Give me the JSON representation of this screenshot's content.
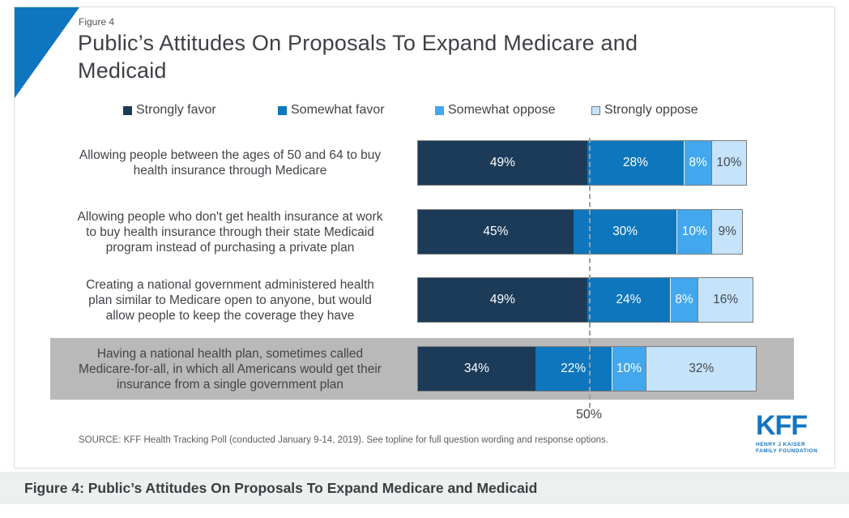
{
  "figure_label": "Figure 4",
  "title": "Public’s Attitudes On Proposals To Expand Medicare and Medicaid",
  "title_lines": [
    "Public’s Attitudes On Proposals To Expand Medicare and",
    "Medicaid"
  ],
  "legend": [
    {
      "label": "Strongly favor",
      "color": "#1b3b58",
      "bordered": false
    },
    {
      "label": "Somewhat favor",
      "color": "#0e76bc",
      "bordered": false
    },
    {
      "label": "Somewhat oppose",
      "color": "#42a7ec",
      "bordered": false
    },
    {
      "label": "Strongly oppose",
      "color": "#c5e3fb",
      "bordered": true
    }
  ],
  "chart_data": {
    "type": "bar",
    "orientation": "horizontal",
    "stacked": true,
    "unit": "%",
    "xlim": [
      0,
      100
    ],
    "categories": [
      "Allowing people between the ages of 50 and 64 to buy health insurance through Medicare",
      "Allowing people who don't get health insurance at work to buy health insurance through their state Medicaid program instead of purchasing a private plan",
      "Creating a national government administered health plan similar to Medicare open to anyone, but would allow people to keep the coverage they have",
      "Having a national health plan, sometimes called Medicare-for-all, in which all Americans would get their insurance from a single government plan"
    ],
    "categories_lines": [
      [
        "Allowing people between the ages of 50 and 64 to buy",
        "health insurance through Medicare"
      ],
      [
        "Allowing people who don't get health insurance at work",
        "to buy health insurance through their state Medicaid",
        "program instead of purchasing a private plan"
      ],
      [
        "Creating a national government administered health",
        "plan similar to Medicare open to anyone, but would",
        "allow people to keep the coverage they have"
      ],
      [
        "Having a national health plan, sometimes called",
        "Medicare-for-all, in which all Americans would get their",
        "insurance from a single government plan"
      ]
    ],
    "series": [
      {
        "name": "Strongly favor",
        "color": "#1b3b58",
        "text_color": "white",
        "values": [
          49,
          45,
          49,
          34
        ]
      },
      {
        "name": "Somewhat favor",
        "color": "#0e76bc",
        "text_color": "white",
        "values": [
          28,
          30,
          24,
          22
        ]
      },
      {
        "name": "Somewhat oppose",
        "color": "#42a7ec",
        "text_color": "white",
        "values": [
          8,
          10,
          8,
          10
        ]
      },
      {
        "name": "Strongly oppose",
        "color": "#c5e3fb",
        "text_color": "dark",
        "values": [
          10,
          9,
          16,
          32
        ]
      }
    ],
    "highlighted_category_index": 3,
    "highlight_color": "#b9b9b9",
    "reference_line": {
      "value": 50,
      "label": "50%"
    },
    "legend_position": "top",
    "grid": false
  },
  "source": "SOURCE: KFF Health Tracking Poll (conducted January 9-14, 2019). See topline for full question wording and response options.",
  "logo": {
    "text": "KFF",
    "line1": "HENRY J KAISER",
    "line2": "FAMILY FOUNDATION",
    "color": "#1375c2"
  },
  "caption": "Figure 4: Public’s Attitudes On Proposals To Expand Medicare and Medicaid",
  "accent_color": "#0d76bf"
}
